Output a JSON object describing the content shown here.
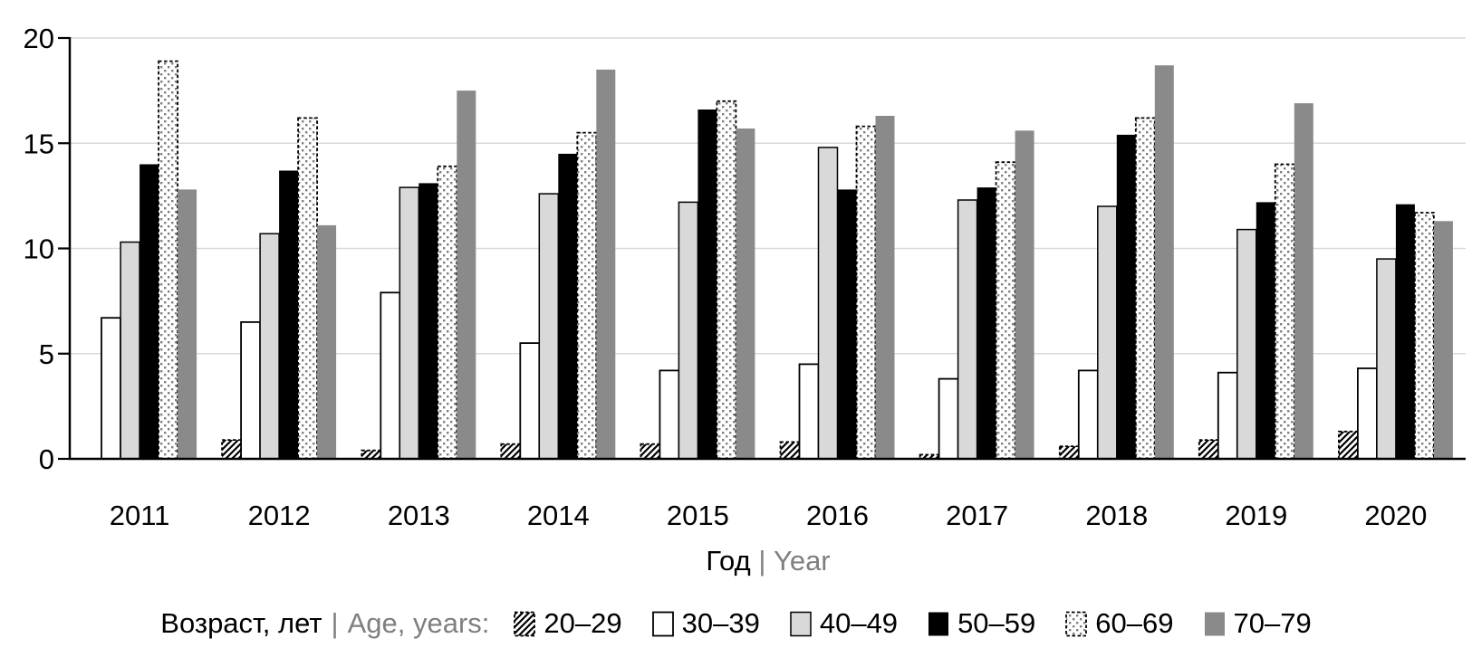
{
  "chart_data": {
    "type": "bar",
    "title": "",
    "categories": [
      "2011",
      "2012",
      "2013",
      "2014",
      "2015",
      "2016",
      "2017",
      "2018",
      "2019",
      "2020"
    ],
    "series": [
      {
        "name": "20–29",
        "style": "hatch",
        "values": [
          0,
          0.9,
          0.4,
          0.7,
          0.7,
          0.8,
          0.2,
          0.6,
          0.9,
          1.3
        ]
      },
      {
        "name": "30–39",
        "style": "white",
        "values": [
          6.7,
          6.5,
          7.9,
          5.5,
          4.2,
          4.5,
          3.8,
          4.2,
          4.1,
          4.3
        ]
      },
      {
        "name": "40–49",
        "style": "lightgray",
        "values": [
          10.3,
          10.7,
          12.9,
          12.6,
          12.2,
          14.8,
          12.3,
          12.0,
          10.9,
          9.5
        ]
      },
      {
        "name": "50–59",
        "style": "black",
        "values": [
          14.0,
          13.7,
          13.1,
          14.5,
          16.6,
          12.8,
          12.9,
          15.4,
          12.2,
          12.1
        ]
      },
      {
        "name": "60–69",
        "style": "dots",
        "values": [
          18.9,
          16.2,
          13.9,
          15.5,
          17.0,
          15.8,
          14.1,
          16.2,
          14.0,
          11.7
        ]
      },
      {
        "name": "70–79",
        "style": "gray",
        "values": [
          12.8,
          11.1,
          17.5,
          18.5,
          15.7,
          16.3,
          15.6,
          18.7,
          16.9,
          11.3
        ]
      }
    ],
    "xlabel": {
      "ru": "Год",
      "separator": "|",
      "en": "Year"
    },
    "ylabel": "",
    "ylim": [
      0,
      20
    ],
    "yticks": [
      0,
      5,
      10,
      15,
      20
    ],
    "grid": "horizontal",
    "legend": {
      "position": "bottom",
      "title_ru": "Возраст, лет",
      "separator": "|",
      "title_en": "Age, years:"
    }
  },
  "colors": {
    "axis": "#000000",
    "grid": "#d9d9d9",
    "bar_light_gray": "#d9d9d9",
    "bar_gray": "#8a8a8a",
    "dot_gray": "#7f7f7f",
    "muted_text": "#7f7f7f",
    "background": "#ffffff"
  }
}
